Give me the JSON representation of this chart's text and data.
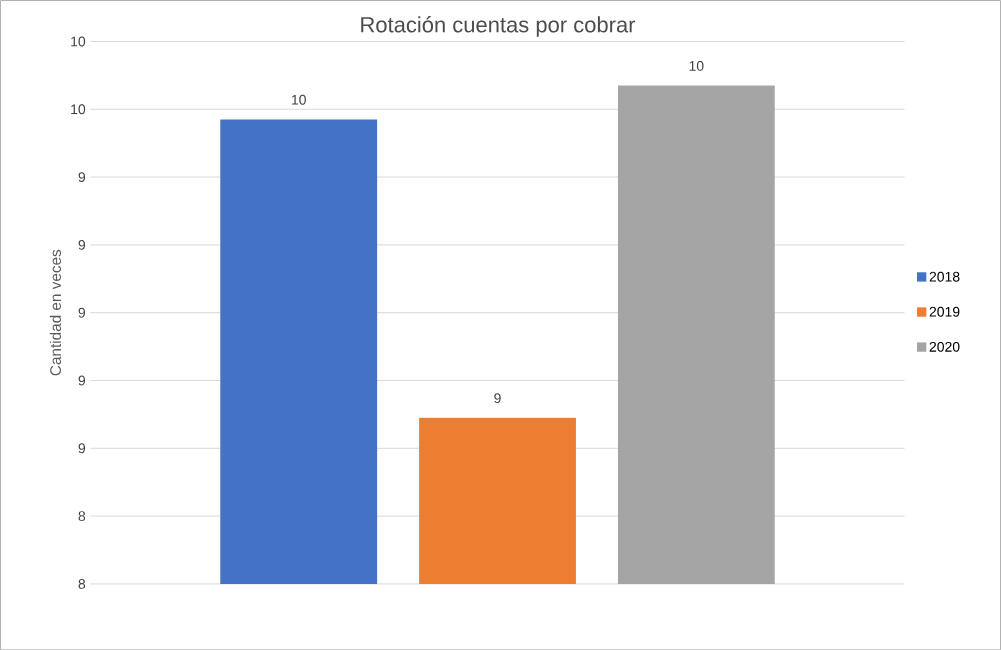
{
  "chart_data": {
    "type": "bar",
    "title": "Rotación cuentas por cobrar",
    "ylabel": "Cantidad en veces",
    "categories": [
      null
    ],
    "series": [
      {
        "name": "2018",
        "color": "#4472c4",
        "values": [
          9.57
        ],
        "value_labels": [
          "10"
        ]
      },
      {
        "name": "2019",
        "color": "#ed7d31",
        "values": [
          8.69
        ],
        "value_labels": [
          "9"
        ]
      },
      {
        "name": "2020",
        "color": "#a5a5a5",
        "values": [
          9.67
        ],
        "value_labels": [
          "10"
        ]
      }
    ],
    "ylim": [
      8.2,
      9.8
    ],
    "yticks": [
      {
        "value": 8.2,
        "label": "8"
      },
      {
        "value": 8.4,
        "label": "8"
      },
      {
        "value": 8.6,
        "label": "9"
      },
      {
        "value": 8.8,
        "label": "9"
      },
      {
        "value": 9.0,
        "label": "9"
      },
      {
        "value": 9.2,
        "label": "9"
      },
      {
        "value": 9.4,
        "label": "9"
      },
      {
        "value": 9.6,
        "label": "10"
      },
      {
        "value": 9.8,
        "label": "10"
      }
    ],
    "grid": "y",
    "legend": "right"
  }
}
